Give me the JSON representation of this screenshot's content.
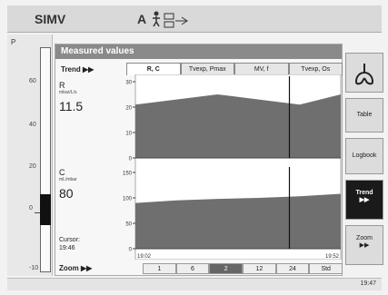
{
  "topbar": {
    "mode": "SIMV",
    "auto_flag": "A"
  },
  "pressure_bar": {
    "unit": "P",
    "ticks": [
      "60",
      "40",
      "20",
      "0",
      "-10"
    ],
    "level_fraction": 0.25
  },
  "panel": {
    "title": "Measured values",
    "trend_label": "Trend ▶▶",
    "tabs": [
      "R, C",
      "Tvexp, Pmax",
      "MV, f",
      "Tvexp, Os"
    ],
    "active_tab": 0,
    "readouts": [
      {
        "name": "R",
        "unit": "mbar/L/s",
        "value": "11.5"
      },
      {
        "name": "C",
        "unit": "mL/mbar",
        "value": "80"
      }
    ],
    "cursor_label": "Cursor:",
    "cursor_time": "19:46",
    "zoom_label": "Zoom ▶▶",
    "zoom_options": [
      "1",
      "6",
      "2",
      "12",
      "24",
      "Std"
    ],
    "zoom_selected": 2
  },
  "chart_data": [
    {
      "type": "area",
      "series": [
        {
          "values": [
            21,
            23,
            25,
            23,
            21,
            25
          ]
        }
      ],
      "yticks": [
        "30",
        "20",
        "10",
        "0"
      ],
      "ylim": [
        0,
        30
      ],
      "x_start": "19:02",
      "x_end": "19:52",
      "cursor_fraction": 0.75
    },
    {
      "type": "area",
      "series": [
        {
          "values": [
            90,
            95,
            98,
            100,
            103,
            108
          ]
        }
      ],
      "yticks": [
        "150",
        "100",
        "50",
        "0"
      ],
      "ylim": [
        0,
        150
      ],
      "x_start": "19:02",
      "x_end": "19:52",
      "cursor_fraction": 0.75
    }
  ],
  "right_buttons": [
    {
      "label": "Table",
      "dark": false
    },
    {
      "label": "Logbook",
      "dark": false
    },
    {
      "label": "Trend",
      "arrow": "▶▶",
      "dark": true
    },
    {
      "label": "Zoom",
      "arrow": "▶▶",
      "dark": false
    }
  ],
  "footer": {
    "clock": "19:47"
  }
}
